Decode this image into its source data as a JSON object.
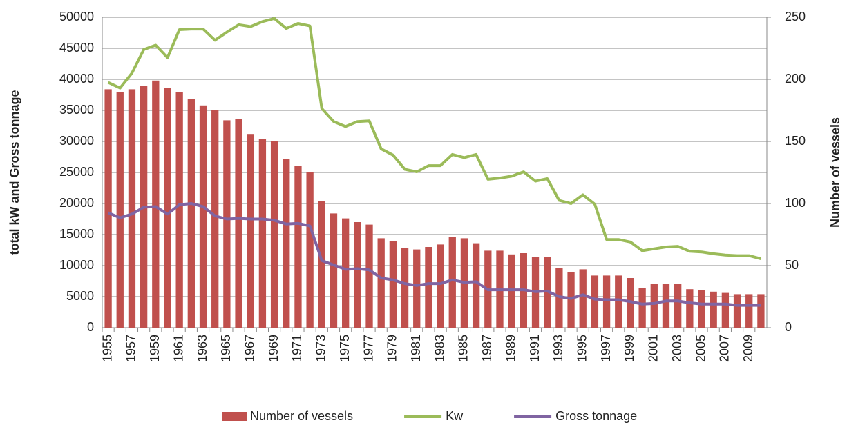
{
  "chart_data": {
    "type": "combo",
    "categories": [
      "1955",
      null,
      "1957",
      null,
      "1959",
      null,
      "1961",
      null,
      "1963",
      null,
      "1965",
      null,
      "1967",
      null,
      "1969",
      null,
      "1971",
      null,
      "1973",
      null,
      "1975",
      null,
      "1977",
      null,
      "1979",
      null,
      "1981",
      null,
      "1983",
      null,
      "1985",
      null,
      "1987",
      null,
      "1989",
      null,
      "1991",
      null,
      "1993",
      null,
      "1995",
      null,
      "1997",
      null,
      "1999",
      null,
      "2001",
      null,
      "2003",
      null,
      "2005",
      null,
      "2007",
      null,
      "2009",
      null
    ],
    "y_label": "total kW and Gross tonnage",
    "y2_label": "Number of vessels",
    "ylim": [
      0,
      50000
    ],
    "yticks": [
      0,
      5000,
      10000,
      15000,
      20000,
      25000,
      30000,
      35000,
      40000,
      45000,
      50000
    ],
    "y2lim": [
      0,
      250
    ],
    "y2ticks": [
      0,
      50,
      100,
      150,
      200,
      250
    ],
    "grid": true,
    "legend": "bottom",
    "series": [
      {
        "name": "Number of vessels",
        "type": "bar",
        "axis": "y2",
        "color": "#c0504d",
        "values": [
          192,
          190,
          192,
          195,
          199,
          193,
          190,
          184,
          179,
          175,
          167,
          168,
          156,
          152,
          150,
          136,
          130,
          125,
          102,
          92,
          88,
          85,
          83,
          72,
          70,
          64,
          63,
          65,
          67,
          73,
          72,
          68,
          62,
          62,
          59,
          60,
          57,
          57,
          48,
          45,
          47,
          42,
          42,
          42,
          40,
          32,
          35,
          35,
          35,
          31,
          30,
          29,
          28,
          27,
          27,
          27
        ]
      },
      {
        "name": "Kw",
        "type": "line",
        "color": "#9bbb59",
        "values": [
          39500,
          38600,
          41000,
          44800,
          45500,
          43500,
          48000,
          48100,
          48100,
          46300,
          47600,
          48800,
          48500,
          49300,
          49800,
          48200,
          49000,
          48600,
          35300,
          33200,
          32400,
          33200,
          33300,
          28800,
          27800,
          25500,
          25100,
          26100,
          26100,
          27900,
          27400,
          27900,
          23900,
          24100,
          24400,
          25100,
          23600,
          24000,
          20500,
          20000,
          21400,
          19900,
          14200,
          14200,
          13800,
          12400,
          12700,
          13000,
          13100,
          12300,
          12200,
          11900,
          11700,
          11600,
          11600,
          11100
        ]
      },
      {
        "name": "Gross tonnage",
        "type": "line",
        "color": "#8064a2",
        "values": [
          18500,
          17700,
          18300,
          19400,
          19500,
          18300,
          19800,
          20000,
          19500,
          18000,
          17500,
          17600,
          17500,
          17500,
          17300,
          16700,
          16800,
          16400,
          10800,
          10100,
          9400,
          9500,
          9300,
          8000,
          7700,
          7100,
          6800,
          7100,
          7100,
          7700,
          7300,
          7400,
          6100,
          6100,
          6100,
          6100,
          5800,
          5900,
          5000,
          4700,
          5300,
          4600,
          4500,
          4500,
          4200,
          3800,
          3900,
          4300,
          4300,
          4000,
          3800,
          3800,
          3800,
          3600,
          3600,
          3600
        ]
      }
    ]
  }
}
